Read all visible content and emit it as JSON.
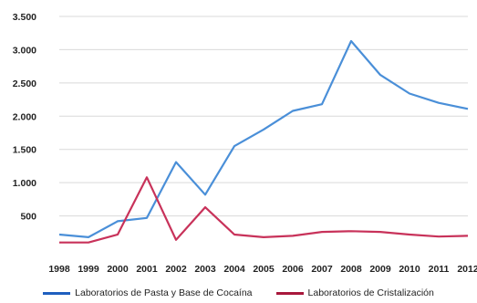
{
  "chart_data": {
    "type": "line",
    "x": [
      "1998",
      "1999",
      "2000",
      "2001",
      "2002",
      "2003",
      "2004",
      "2005",
      "2006",
      "2007",
      "2008",
      "2009",
      "2010",
      "2011",
      "2012"
    ],
    "ylim": [
      0,
      3500
    ],
    "yticks": [
      "3.500",
      "3.000",
      "2.500",
      "2.000",
      "1.500",
      "1.000",
      "500"
    ],
    "ytick_values": [
      3500,
      3000,
      2500,
      2000,
      1500,
      1000,
      500
    ],
    "grid": true,
    "legend_position": "bottom",
    "series": [
      {
        "name": "Laboratorios de Pasta y Base de Cocaína",
        "color": "#4a8fd8",
        "values": [
          220,
          180,
          420,
          470,
          1310,
          820,
          1550,
          1800,
          2080,
          2180,
          3130,
          2620,
          2340,
          2200,
          2110
        ]
      },
      {
        "name": "Laboratorios de Cristalización",
        "color": "#c8325a",
        "values": [
          100,
          100,
          220,
          1080,
          140,
          630,
          220,
          180,
          200,
          260,
          270,
          260,
          220,
          190,
          200
        ]
      }
    ]
  }
}
